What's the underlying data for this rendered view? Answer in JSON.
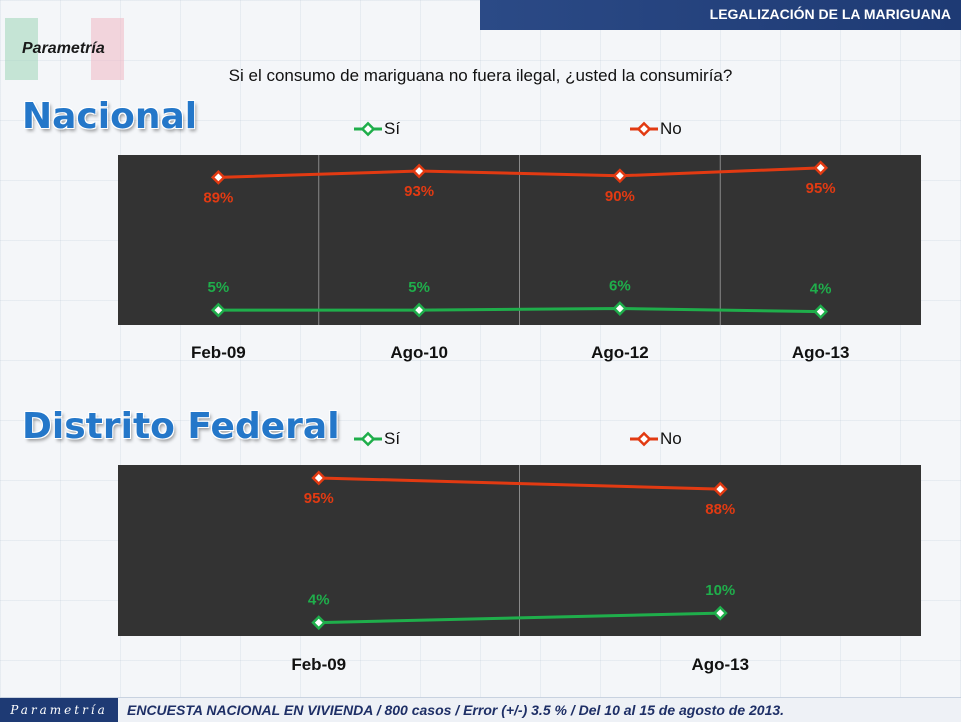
{
  "header": {
    "title": "LEGALIZACIÓN DE LA MARIGUANA",
    "brand": "Parametría",
    "question": "Si el consumo de mariguana no fuera ilegal, ¿usted la consumiría?"
  },
  "colors": {
    "si": "#1fae4b",
    "no": "#e23a12",
    "plot_bg": "#333333",
    "title_blue": "#2477c9",
    "header_bar": "#1e3a74"
  },
  "chart_data": [
    {
      "type": "line",
      "title": "Nacional",
      "categories": [
        "Feb-09",
        "Ago-10",
        "Ago-12",
        "Ago-13"
      ],
      "ylim": [
        0,
        100
      ],
      "legend": "top",
      "series": [
        {
          "name": "Sí",
          "values": [
            5,
            5,
            6,
            4
          ],
          "labels": [
            "5%",
            "5%",
            "6%",
            "4%"
          ]
        },
        {
          "name": "No",
          "values": [
            89,
            93,
            90,
            95
          ],
          "labels": [
            "89%",
            "93%",
            "90%",
            "95%"
          ]
        }
      ]
    },
    {
      "type": "line",
      "title": "Distrito Federal",
      "categories": [
        "Feb-09",
        "Ago-13"
      ],
      "ylim": [
        0,
        100
      ],
      "legend": "top",
      "series": [
        {
          "name": "Sí",
          "values": [
            4,
            10
          ],
          "labels": [
            "4%",
            "10%"
          ]
        },
        {
          "name": "No",
          "values": [
            95,
            88
          ],
          "labels": [
            "95%",
            "88%"
          ]
        }
      ]
    }
  ],
  "footer": {
    "logo": "Parametría",
    "text": "ENCUESTA NACIONAL EN VIVIENDA / 800 casos / Error (+/-) 3.5 % / Del 10 al 15 de agosto de 2013."
  }
}
